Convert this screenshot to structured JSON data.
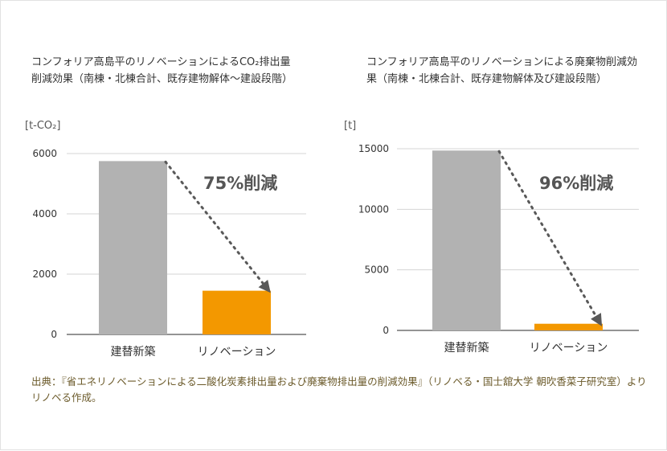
{
  "chart_data": [
    {
      "type": "bar",
      "title": "コンフォリア高島平のリノベーションによるCO₂排出量削減効果（南棟・北棟合計、既存建物解体〜建設段階）",
      "unit": "[t-CO₂]",
      "categories": [
        "建替新築",
        "リノベーション"
      ],
      "values": [
        5750,
        1450
      ],
      "yticks": [
        0,
        2000,
        4000,
        6000
      ],
      "ylim": [
        0,
        6000
      ],
      "annotation": "75%削減",
      "grid": true,
      "colors": [
        "#b2b2b2",
        "#f39800"
      ]
    },
    {
      "type": "bar",
      "title": "コンフォリア高島平のリノベーションによる廃棄物削減効果（南棟・北棟合計、既存建物解体及び建設段階）",
      "unit": "[t]",
      "categories": [
        "建替新築",
        "リノベーション"
      ],
      "values": [
        14850,
        550
      ],
      "yticks": [
        0,
        5000,
        10000,
        15000
      ],
      "ylim": [
        0,
        15000
      ],
      "annotation": "96%削減",
      "grid": true,
      "colors": [
        "#b2b2b2",
        "#f39800"
      ]
    }
  ],
  "source": "出典：『省エネリノベーションによる二酸化炭素排出量および廃棄物排出量の削減効果』（リノベる・国士舘大学 朝吹香菜子研究室）よりリノベる作成。"
}
